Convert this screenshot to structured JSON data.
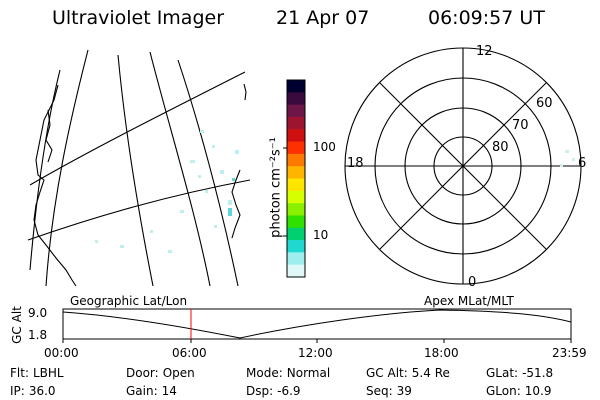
{
  "header": {
    "instrument": "Ultraviolet Imager",
    "date": "21 Apr 07",
    "time": "06:09:57 UT"
  },
  "colorbar": {
    "unit": "photon cm⁻²s⁻¹",
    "ticks": [
      "100",
      "10"
    ],
    "colors": [
      "#000030",
      "#3a0a3e",
      "#6e1648",
      "#9c1430",
      "#d01010",
      "#ff3000",
      "#ff7800",
      "#ffb400",
      "#ffe600",
      "#d6ff00",
      "#8af000",
      "#30e000",
      "#00d070",
      "#20d8d0",
      "#9eeeee",
      "#dff7f7"
    ]
  },
  "polar": {
    "labels": [
      "12",
      "18",
      "6",
      "0",
      "60",
      "70",
      "80"
    ]
  },
  "timeline": {
    "left_label": "Geographic Lat/Lon",
    "right_label": "Apex  MLat/MLT",
    "axis_title": "GC Alt",
    "y_ticks": [
      "9.0",
      "1.8"
    ],
    "x_ticks": [
      "00:00",
      "06:00",
      "12:00",
      "18:00",
      "23:59"
    ],
    "marker_color": "#ff0000"
  },
  "info": {
    "row1": [
      {
        "label": "Flt:",
        "value": "LBHL"
      },
      {
        "label": "Door:",
        "value": "Open"
      },
      {
        "label": "Mode:",
        "value": "Normal"
      },
      {
        "label": "GC Alt:",
        "value": "5.4 Re"
      },
      {
        "label": "GLat:",
        "value": "-51.8"
      }
    ],
    "row2": [
      {
        "label": "IP:",
        "value": "36.0"
      },
      {
        "label": "Gain:",
        "value": "14"
      },
      {
        "label": "Dsp:",
        "value": "-6.9"
      },
      {
        "label": "Seq:",
        "value": "39"
      },
      {
        "label": "GLon:",
        "value": "10.9"
      }
    ]
  }
}
